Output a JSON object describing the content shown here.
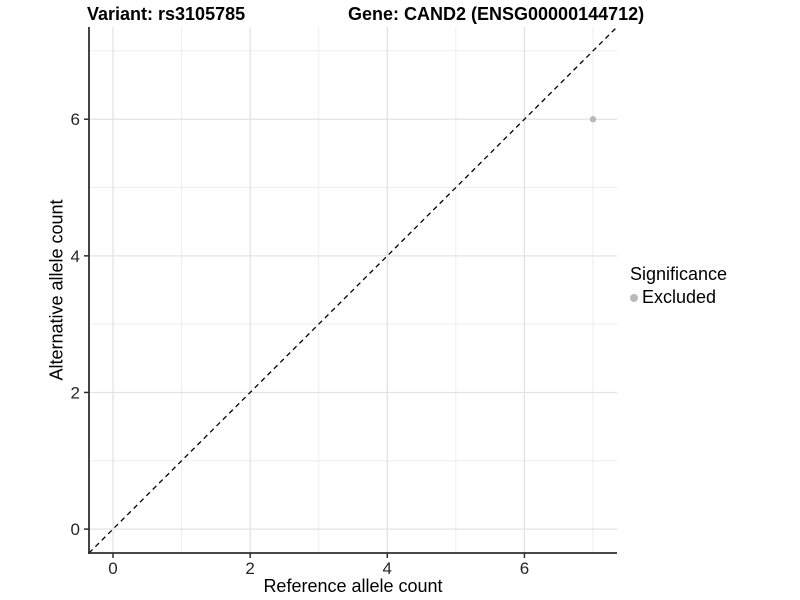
{
  "chart_data": {
    "type": "scatter",
    "title_left": "Variant: rs3105785",
    "title_right": "Gene: CAND2 (ENSG00000144712)",
    "xlabel": "Reference allele count",
    "ylabel": "Alternative allele count",
    "xlim": [
      -0.35,
      7.35
    ],
    "ylim": [
      -0.35,
      7.35
    ],
    "x_major_ticks": [
      0,
      2,
      4,
      6
    ],
    "y_major_ticks": [
      0,
      2,
      4,
      6
    ],
    "x_minor_gridlines": [
      1,
      3,
      5,
      7
    ],
    "y_minor_gridlines": [
      1,
      3,
      5,
      7
    ],
    "identity_line": {
      "from": [
        -0.35,
        -0.35
      ],
      "to": [
        7.35,
        7.35
      ],
      "style": "dashed"
    },
    "points": [
      {
        "x": 7,
        "y": 6,
        "significance": "Excluded"
      }
    ],
    "legend": {
      "title": "Significance",
      "position": "right",
      "items": [
        {
          "label": "Excluded",
          "color": "#b9b9b9"
        }
      ]
    },
    "colors": {
      "point": "#b9b9b9",
      "grid_major": "#e3e3e3",
      "grid_minor": "#eeeeee",
      "axis": "#2f2f2f",
      "tick_label": "#262626",
      "identity_line": "#000000",
      "background": "#ffffff"
    },
    "grid": true
  }
}
